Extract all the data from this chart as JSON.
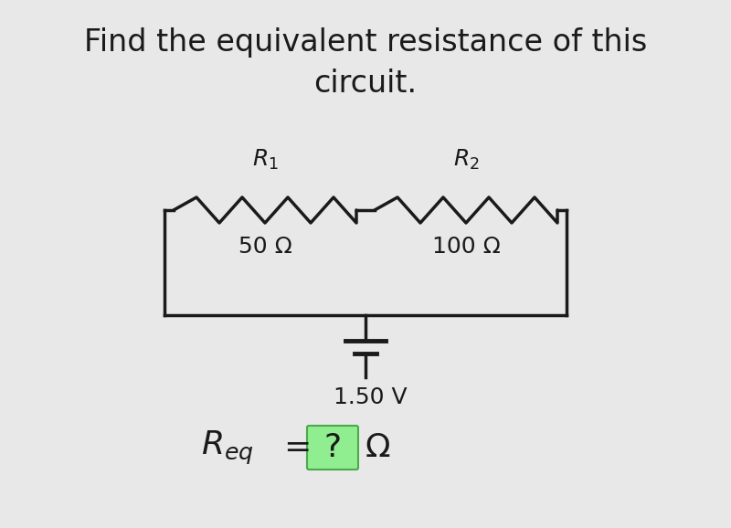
{
  "title_line1": "Find the equivalent resistance of this",
  "title_line2": "circuit.",
  "title_fontsize": 24,
  "bg_color": "#e8e8e8",
  "circuit_color": "#1a1a1a",
  "r1_value": "50 Ω",
  "r2_value": "100 Ω",
  "voltage_label": "1.50 V",
  "question_box_color": "#90ee90",
  "question_box_border": "#4aaa4a",
  "omega": "Ω",
  "label_fontsize": 18,
  "value_fontsize": 18,
  "req_fontsize": 26
}
